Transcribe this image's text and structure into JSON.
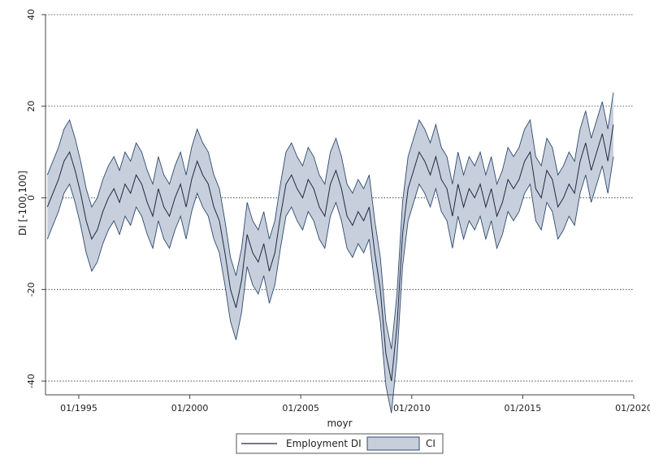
{
  "chart_data": {
    "type": "line",
    "title": "",
    "xlabel": "moyr",
    "ylabel": "DI [-100,100]",
    "xlim": [
      "1993-07",
      "2020-01"
    ],
    "ylim": [
      -43,
      40
    ],
    "x_ticks": [
      {
        "x": "1995-01",
        "label": "01/1995"
      },
      {
        "x": "2000-01",
        "label": "01/2000"
      },
      {
        "x": "2005-01",
        "label": "01/2005"
      },
      {
        "x": "2010-01",
        "label": "01/2010"
      },
      {
        "x": "2015-01",
        "label": "01/2015"
      },
      {
        "x": "2020-01",
        "label": "01/2020"
      }
    ],
    "y_ticks": [
      {
        "y": 40,
        "label": "40"
      },
      {
        "y": 20,
        "label": "20"
      },
      {
        "y": 0,
        "label": "0"
      },
      {
        "y": -20,
        "label": "-20"
      },
      {
        "y": -40,
        "label": "-40"
      }
    ],
    "grid": "horizontal dotted",
    "legend_position": "bottom",
    "colors": {
      "line": "#1f2a44",
      "ci_fill": "#c7cfdc",
      "ci_edge": "#2c4a70",
      "grid": "#333333"
    },
    "ci_half_width": 7,
    "series": [
      {
        "name": "Employment DI",
        "x": [
          "1993-08",
          "1993-11",
          "1994-02",
          "1994-05",
          "1994-08",
          "1994-11",
          "1995-02",
          "1995-05",
          "1995-08",
          "1995-11",
          "1996-02",
          "1996-05",
          "1996-08",
          "1996-11",
          "1997-02",
          "1997-05",
          "1997-08",
          "1997-11",
          "1998-02",
          "1998-05",
          "1998-08",
          "1998-11",
          "1999-02",
          "1999-05",
          "1999-08",
          "1999-11",
          "2000-02",
          "2000-05",
          "2000-08",
          "2000-11",
          "2001-02",
          "2001-05",
          "2001-08",
          "2001-11",
          "2002-02",
          "2002-05",
          "2002-08",
          "2002-11",
          "2003-02",
          "2003-05",
          "2003-08",
          "2003-11",
          "2004-02",
          "2004-05",
          "2004-08",
          "2004-11",
          "2005-02",
          "2005-05",
          "2005-08",
          "2005-11",
          "2006-02",
          "2006-05",
          "2006-08",
          "2006-11",
          "2007-02",
          "2007-05",
          "2007-08",
          "2007-11",
          "2008-02",
          "2008-05",
          "2008-08",
          "2008-11",
          "2009-02",
          "2009-05",
          "2009-08",
          "2009-11",
          "2010-02",
          "2010-05",
          "2010-08",
          "2010-11",
          "2011-02",
          "2011-05",
          "2011-08",
          "2011-11",
          "2012-02",
          "2012-05",
          "2012-08",
          "2012-11",
          "2013-02",
          "2013-05",
          "2013-08",
          "2013-11",
          "2014-02",
          "2014-05",
          "2014-08",
          "2014-11",
          "2015-02",
          "2015-05",
          "2015-08",
          "2015-11",
          "2016-02",
          "2016-05",
          "2016-08",
          "2016-11",
          "2017-02",
          "2017-05",
          "2017-08",
          "2017-11",
          "2018-02",
          "2018-05",
          "2018-08",
          "2018-11",
          "2019-02"
        ],
        "y": [
          -2,
          1,
          4,
          8,
          10,
          6,
          1,
          -5,
          -9,
          -7,
          -3,
          0,
          2,
          -1,
          3,
          1,
          5,
          3,
          -1,
          -4,
          2,
          -2,
          -4,
          0,
          3,
          -2,
          4,
          8,
          5,
          3,
          -2,
          -5,
          -12,
          -20,
          -24,
          -18,
          -8,
          -12,
          -14,
          -10,
          -16,
          -12,
          -4,
          3,
          5,
          2,
          0,
          4,
          2,
          -2,
          -4,
          3,
          6,
          2,
          -4,
          -6,
          -3,
          -5,
          -2,
          -12,
          -20,
          -34,
          -40,
          -28,
          -8,
          2,
          6,
          10,
          8,
          5,
          9,
          4,
          2,
          -4,
          3,
          -2,
          2,
          0,
          3,
          -2,
          2,
          -4,
          -1,
          4,
          2,
          4,
          8,
          10,
          2,
          0,
          6,
          4,
          -2,
          0,
          3,
          1,
          8,
          12,
          6,
          10,
          14,
          8,
          16
        ]
      }
    ]
  },
  "legend": {
    "line_label": "Employment DI",
    "ci_label": "CI"
  }
}
